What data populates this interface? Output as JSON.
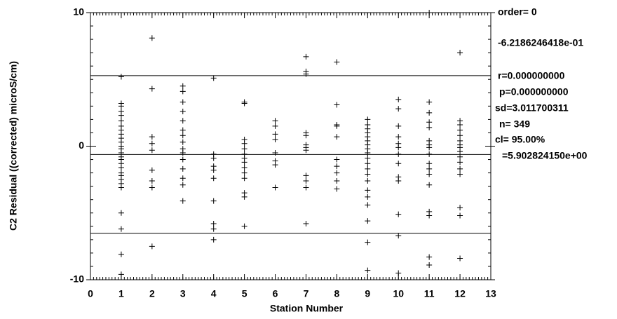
{
  "chart_data": {
    "type": "scatter",
    "xlabel": "Station Number",
    "ylabel": "C2 Residual ((corrected) microS/cm)",
    "xlim": [
      0,
      13
    ],
    "xticks": [
      0,
      1,
      2,
      3,
      4,
      5,
      6,
      7,
      8,
      9,
      10,
      11,
      12,
      13
    ],
    "x_minor_step": 0.1,
    "ylim": [
      -10,
      10
    ],
    "yticks": [
      -10,
      0,
      10
    ],
    "y_minor_step": 1,
    "hlines": [
      5.28096,
      -0.62186,
      -6.52469
    ],
    "annotations": [
      "order= 0",
      "-6.2186246418e-01",
      "r=0.000000000",
      "p=0.000000000",
      "sd=3.011700311",
      "n=  349",
      "cl=  95.00%",
      "=5.902824150e+00"
    ],
    "color": "#000000",
    "x": [
      1,
      1,
      1,
      1,
      1,
      1,
      1,
      1,
      1,
      1,
      1,
      1,
      1,
      1,
      1,
      1,
      1,
      1,
      1,
      1,
      1,
      1,
      1,
      1,
      1,
      1,
      1,
      2,
      2,
      2,
      2,
      2,
      2,
      2,
      2,
      2,
      3,
      3,
      3,
      3,
      3,
      3,
      3,
      3,
      3,
      3,
      3,
      3,
      3,
      3,
      3,
      4,
      4,
      4,
      4,
      4,
      4,
      4,
      4,
      4,
      4,
      5,
      5,
      5,
      5,
      5,
      5,
      5,
      5,
      5,
      5,
      5,
      5,
      5,
      5,
      6,
      6,
      6,
      6,
      6,
      6,
      6,
      6,
      7,
      7,
      7,
      7,
      7,
      7,
      7,
      7,
      7,
      7,
      7,
      7,
      8,
      8,
      8,
      8,
      8,
      8,
      8,
      8,
      8,
      8,
      9,
      9,
      9,
      9,
      9,
      9,
      9,
      9,
      9,
      9,
      9,
      9,
      9,
      9,
      9,
      9,
      9,
      9,
      9,
      9,
      10,
      10,
      10,
      10,
      10,
      10,
      10,
      10,
      10,
      10,
      10,
      10,
      10,
      11,
      11,
      11,
      11,
      11,
      11,
      11,
      11,
      11,
      11,
      11,
      11,
      11,
      11,
      11,
      11,
      11,
      12,
      12,
      12,
      12,
      12,
      12,
      12,
      12,
      12,
      12,
      12,
      12,
      12,
      12,
      12,
      12
    ],
    "values": [
      5.2,
      3.2,
      3.0,
      2.6,
      2.3,
      1.9,
      1.5,
      1.2,
      0.9,
      0.6,
      0.3,
      0,
      -0.2,
      -0.5,
      -0.8,
      -1.0,
      -1.3,
      -1.6,
      -2.0,
      -2.2,
      -2.5,
      -2.8,
      -3.1,
      -5.0,
      -6.2,
      -8.1,
      -9.6,
      8.1,
      4.3,
      0.7,
      0.2,
      -0.3,
      -1.8,
      -2.6,
      -3.1,
      -7.5,
      4.5,
      4.1,
      3.3,
      2.6,
      1.9,
      1.2,
      0.8,
      0.3,
      -0.2,
      -0.5,
      -1.0,
      -1.7,
      -2.4,
      -2.9,
      -4.1,
      5.1,
      -0.6,
      -0.9,
      -1.5,
      -1.8,
      -2.4,
      -4.1,
      -5.8,
      -6.2,
      -7.0,
      3.3,
      3.2,
      0.5,
      0.2,
      -0.2,
      -0.6,
      -0.9,
      -1.2,
      -1.6,
      -2.0,
      -2.4,
      -3.5,
      -3.8,
      -6.0,
      1.9,
      1.5,
      0.9,
      0.5,
      -0.5,
      -1.1,
      -1.4,
      -3.1,
      6.7,
      5.6,
      5.4,
      1.0,
      0.8,
      0.1,
      -0.1,
      -0.3,
      -2.2,
      -2.6,
      -3.1,
      -5.8,
      6.3,
      3.1,
      1.6,
      1.5,
      0.7,
      -1.0,
      -1.5,
      -2.0,
      -2.6,
      -3.2,
      2.0,
      1.6,
      1.3,
      1.0,
      0.7,
      0.4,
      0.1,
      -0.2,
      -0.5,
      -0.9,
      -1.3,
      -1.7,
      -2.1,
      -2.6,
      -3.3,
      -3.8,
      -4.4,
      -5.6,
      -7.2,
      -9.3,
      3.5,
      2.8,
      1.5,
      0.7,
      0.2,
      -0.1,
      -0.6,
      -1.3,
      -2.3,
      -2.6,
      -5.1,
      -6.7,
      -9.5,
      10.0,
      3.3,
      2.5,
      1.8,
      1.4,
      0.4,
      0.1,
      -0.1,
      -0.6,
      -1.3,
      -1.7,
      -2.1,
      -2.9,
      -4.9,
      -5.2,
      -8.3,
      -8.9,
      7.0,
      1.9,
      1.6,
      1.2,
      0.8,
      0.4,
      0.1,
      -0.1,
      -0.4,
      -0.8,
      -1.2,
      -1.7,
      -2.1,
      -4.6,
      -5.2,
      -8.4
    ]
  }
}
